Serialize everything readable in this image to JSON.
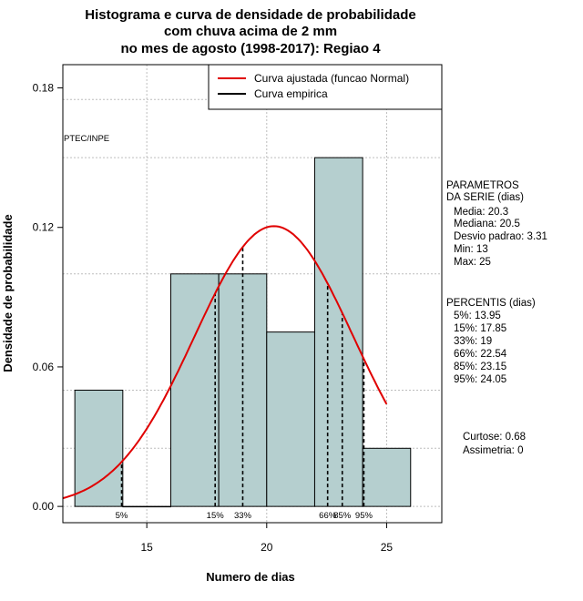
{
  "chart_data": {
    "type": "bar",
    "title_lines": [
      "Histograma e curva de densidade de probabilidade",
      "com chuva acima de 2 mm",
      "no mes de agosto (1998-2017): Regiao 4"
    ],
    "xlabel": "Numero de dias",
    "ylabel": "Densidade de probabilidade",
    "xlim": [
      11.5,
      27.3
    ],
    "ylim": [
      -0.007,
      0.19
    ],
    "x_ticks": [
      15,
      20,
      25
    ],
    "y_ticks": [
      0.0,
      0.06,
      0.12,
      0.18
    ],
    "y_tick_labels": [
      "0.00",
      "0.06",
      "0.12",
      "0.18"
    ],
    "grid": true,
    "bar_color": "#b5cfcf",
    "bins": [
      {
        "start": 12,
        "end": 14,
        "density": 0.05
      },
      {
        "start": 14,
        "end": 16,
        "density": 0.0
      },
      {
        "start": 16,
        "end": 18,
        "density": 0.1
      },
      {
        "start": 18,
        "end": 20,
        "density": 0.1
      },
      {
        "start": 20,
        "end": 22,
        "density": 0.075
      },
      {
        "start": 22,
        "end": 24,
        "density": 0.15
      },
      {
        "start": 24,
        "end": 26,
        "density": 0.025
      }
    ],
    "normal_curve": {
      "mean": 20.3,
      "sd": 3.31,
      "x_range": [
        11.5,
        25
      ],
      "color": "#e00000"
    },
    "percentile_lines": [
      {
        "label": "5%",
        "x": 13.95
      },
      {
        "label": "15%",
        "x": 17.85
      },
      {
        "label": "33%",
        "x": 19
      },
      {
        "label": "66%",
        "x": 22.54
      },
      {
        "label": "85%",
        "x": 23.15
      },
      {
        "label": "95%",
        "x": 24.05
      }
    ],
    "legend": {
      "placement": "top-right",
      "entries": [
        {
          "label": "Curva ajustada (funcao Normal)",
          "color": "#e00000"
        },
        {
          "label": "Curva empirica",
          "color": "#000000"
        }
      ]
    },
    "source_label": "PTEC/INPE"
  },
  "stats_panel": {
    "params_title": [
      "PARAMETROS",
      "DA SERIE (dias)"
    ],
    "params": [
      "Media: 20.3",
      "Mediana: 20.5",
      "Desvio padrao: 3.31",
      "Min: 13",
      "Max: 25"
    ],
    "percentis_title": "PERCENTIS (dias)",
    "percentis": [
      "5%: 13.95",
      "15%: 17.85",
      "33%: 19",
      "66%: 22.54",
      "85%: 23.15",
      "95%: 24.05"
    ],
    "curtose": "Curtose: 0.68",
    "assimetria": "Assimetria: 0"
  }
}
